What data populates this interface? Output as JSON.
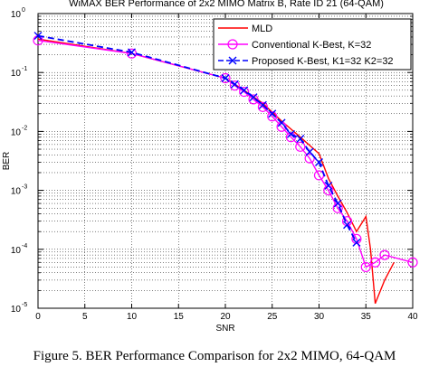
{
  "chart_data": {
    "type": "line",
    "title": "WiMAX BER Performance of 2x2 MIMO Matrix B, Rate ID 21 (64-QAM)",
    "xlabel": "SNR",
    "ylabel": "BER",
    "xlim": [
      0,
      40
    ],
    "ylim": [
      1e-05,
      1
    ],
    "yscale": "log",
    "grid": true,
    "legend_position": "top-right",
    "x_ticks": [
      "0",
      "5",
      "10",
      "15",
      "20",
      "25",
      "30",
      "35",
      "40"
    ],
    "y_ticks": [
      {
        "base": "10",
        "exp": "0"
      },
      {
        "base": "10",
        "exp": "-1"
      },
      {
        "base": "10",
        "exp": "-2"
      },
      {
        "base": "10",
        "exp": "-3"
      },
      {
        "base": "10",
        "exp": "-4"
      },
      {
        "base": "10",
        "exp": "-5"
      }
    ],
    "series": [
      {
        "name": "MLD",
        "color": "#ff0000",
        "line": "solid",
        "marker": "none",
        "x": [
          0,
          10,
          20,
          22,
          24,
          26,
          28,
          30,
          31,
          32,
          33,
          34,
          35,
          35.5,
          36,
          37,
          38
        ],
        "y": [
          0.37,
          0.21,
          0.08,
          0.05,
          0.03,
          0.015,
          0.008,
          0.0042,
          0.0016,
          0.0008,
          0.00042,
          0.0002,
          0.00036,
          0.0001,
          1.2e-05,
          3e-05,
          6e-05
        ]
      },
      {
        "name": "Conventional K-Best, K=32",
        "color": "#ff00ff",
        "line": "solid",
        "marker": "circle",
        "x": [
          0,
          10,
          20,
          21,
          22,
          23,
          24,
          25,
          26,
          27,
          28,
          29,
          30,
          31,
          32,
          33,
          34,
          35,
          36,
          37,
          40
        ],
        "y": [
          0.35,
          0.21,
          0.08,
          0.06,
          0.047,
          0.035,
          0.026,
          0.018,
          0.012,
          0.008,
          0.0055,
          0.0035,
          0.0018,
          0.001,
          0.0005,
          0.0003,
          0.00015,
          5e-05,
          6e-05,
          8e-05,
          6e-05
        ]
      },
      {
        "name": "Proposed K-Best, K1=32 K2=32",
        "color": "#0000ff",
        "line": "dashed",
        "marker": "x",
        "x": [
          0,
          10,
          20,
          21,
          22,
          23,
          24,
          25,
          26,
          27,
          28,
          29,
          30,
          31,
          32,
          33,
          34
        ],
        "y": [
          0.42,
          0.22,
          0.08,
          0.063,
          0.05,
          0.038,
          0.028,
          0.02,
          0.014,
          0.009,
          0.0075,
          0.0045,
          0.003,
          0.0012,
          0.0006,
          0.00026,
          0.00013
        ]
      }
    ]
  },
  "caption": "Figure 5. BER Performance Comparison for 2x2 MIMO, 64-QAM"
}
